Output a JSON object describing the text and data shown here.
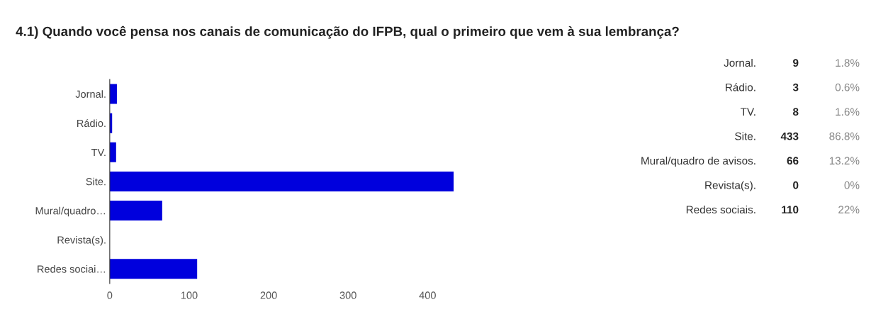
{
  "chart_data": {
    "type": "bar",
    "orientation": "horizontal",
    "title": "4.1) Quando você pensa nos canais de comunicação do IFPB, qual o primeiro que vem à sua lembrança?",
    "categories": [
      "Jornal.",
      "Rádio.",
      "TV.",
      "Site.",
      "Mural/quadro…",
      "Revista(s).",
      "Redes sociai…"
    ],
    "values": [
      9,
      3,
      8,
      433,
      66,
      0,
      110
    ],
    "color": "#0000dd",
    "xlim": [
      0,
      433
    ],
    "xticks": [
      0,
      100,
      200,
      300,
      400
    ],
    "grid": false,
    "legend": false,
    "annotations": [
      "Jornal.",
      "Rádio.",
      "TV.",
      "Site.",
      "Mural/quadro de avisos.",
      "Revista(s).",
      "Redes sociais.",
      "9",
      "3",
      "8",
      "433",
      "66",
      "0",
      "110",
      "1.8%",
      "0.6%",
      "1.6%",
      "86.8%",
      "13.2%",
      "0%",
      "22%"
    ]
  }
}
